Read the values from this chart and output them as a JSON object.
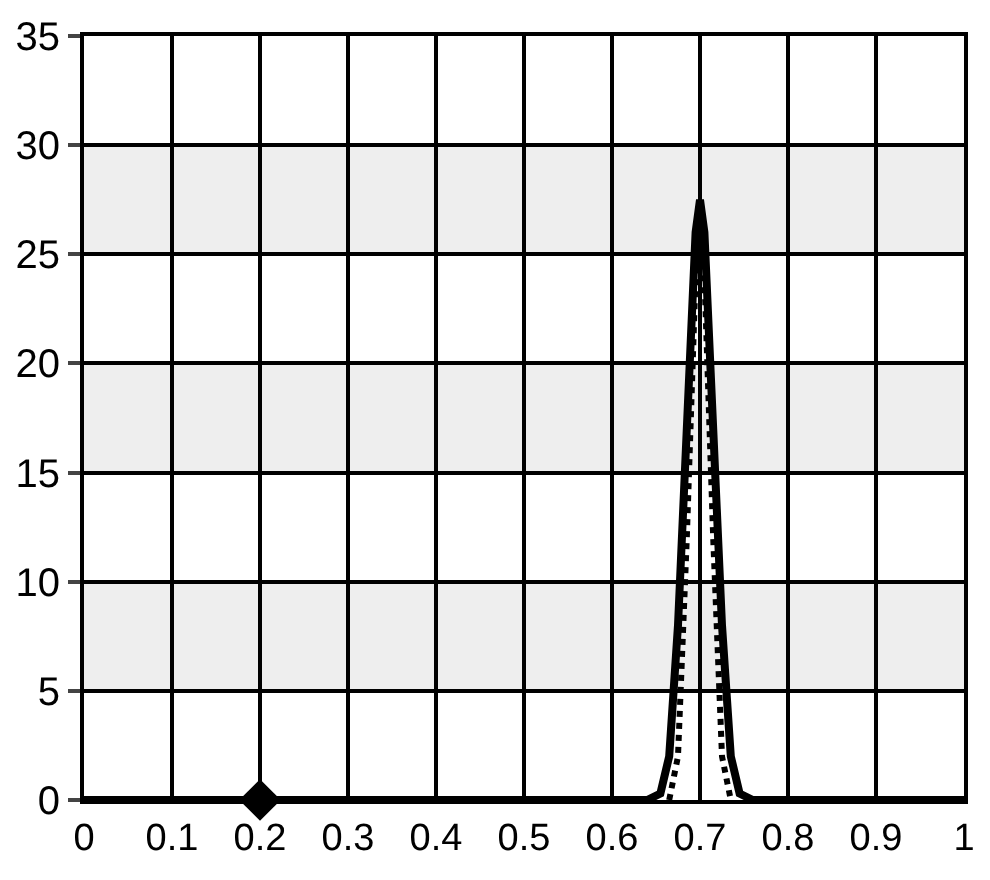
{
  "chart_data": {
    "type": "line",
    "xlim": [
      0,
      1
    ],
    "xticks": [
      0,
      0.1,
      0.2,
      0.3,
      0.4,
      0.5,
      0.6,
      0.7,
      0.8,
      0.9,
      1
    ],
    "ylim": [
      0,
      35
    ],
    "yticks": [
      0,
      5,
      10,
      15,
      20,
      25,
      30,
      35
    ],
    "grid": true,
    "bands": [
      {
        "axis": "y",
        "from": 5,
        "to": 10,
        "color": "#eeeeee"
      },
      {
        "axis": "y",
        "from": 15,
        "to": 20,
        "color": "#eeeeee"
      },
      {
        "axis": "y",
        "from": 25,
        "to": 30,
        "color": "#eeeeee"
      }
    ],
    "series": [
      {
        "color": "#000000",
        "line_style": "solid",
        "marker": "none",
        "x": [
          0,
          0.64,
          0.655,
          0.665,
          0.675,
          0.685,
          0.695,
          0.7,
          0.705,
          0.715,
          0.725,
          0.735,
          0.745,
          0.76,
          1
        ],
        "values": [
          0,
          0,
          0.3,
          2,
          8,
          17,
          26,
          27.5,
          26,
          17,
          8,
          2,
          0.3,
          0,
          0
        ]
      },
      {
        "color": "#000000",
        "line_style": "dotted",
        "marker": "none",
        "x": [
          0.665,
          0.675,
          0.685,
          0.695,
          0.7,
          0.705,
          0.715,
          0.725,
          0.735
        ],
        "values": [
          0,
          2,
          12,
          24,
          26,
          24,
          12,
          2,
          0
        ]
      },
      {
        "type": "scatter",
        "color": "#000000",
        "marker": "diamond",
        "x": [
          0.2
        ],
        "values": [
          0
        ]
      }
    ]
  }
}
